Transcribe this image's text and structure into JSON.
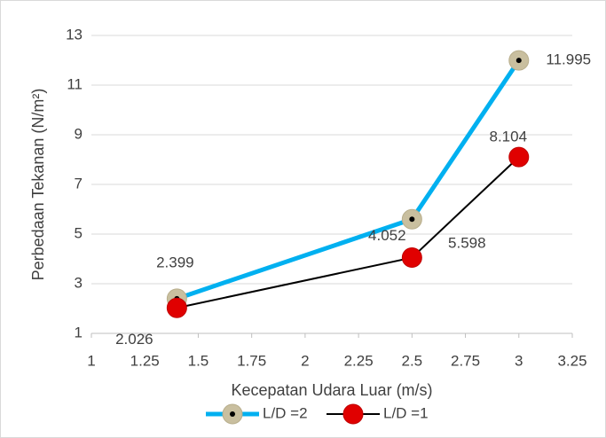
{
  "chart_data": {
    "type": "line",
    "x_label": "Kecepatan Udara Luar (m/s)",
    "y_label": "Perbedaan Tekanan (N/m²)",
    "xlim": [
      1,
      3.25
    ],
    "xticks": [
      1,
      1.25,
      1.5,
      1.75,
      2,
      2.25,
      2.5,
      2.75,
      3,
      3.25
    ],
    "ylim": [
      1,
      13
    ],
    "yticks": [
      1,
      3,
      5,
      7,
      9,
      11,
      13
    ],
    "grid": true,
    "legend": "bottom",
    "x": [
      1.4,
      2.5,
      3
    ],
    "series": [
      {
        "name": "L/D =2",
        "color": "#00b0f0",
        "marker_color": "#c9bf9f",
        "values": [
          2.399,
          5.598,
          11.995
        ]
      },
      {
        "name": "L/D =1",
        "color": "#000000",
        "marker_color": "#e00000",
        "values": [
          2.026,
          4.052,
          8.104
        ]
      }
    ]
  }
}
